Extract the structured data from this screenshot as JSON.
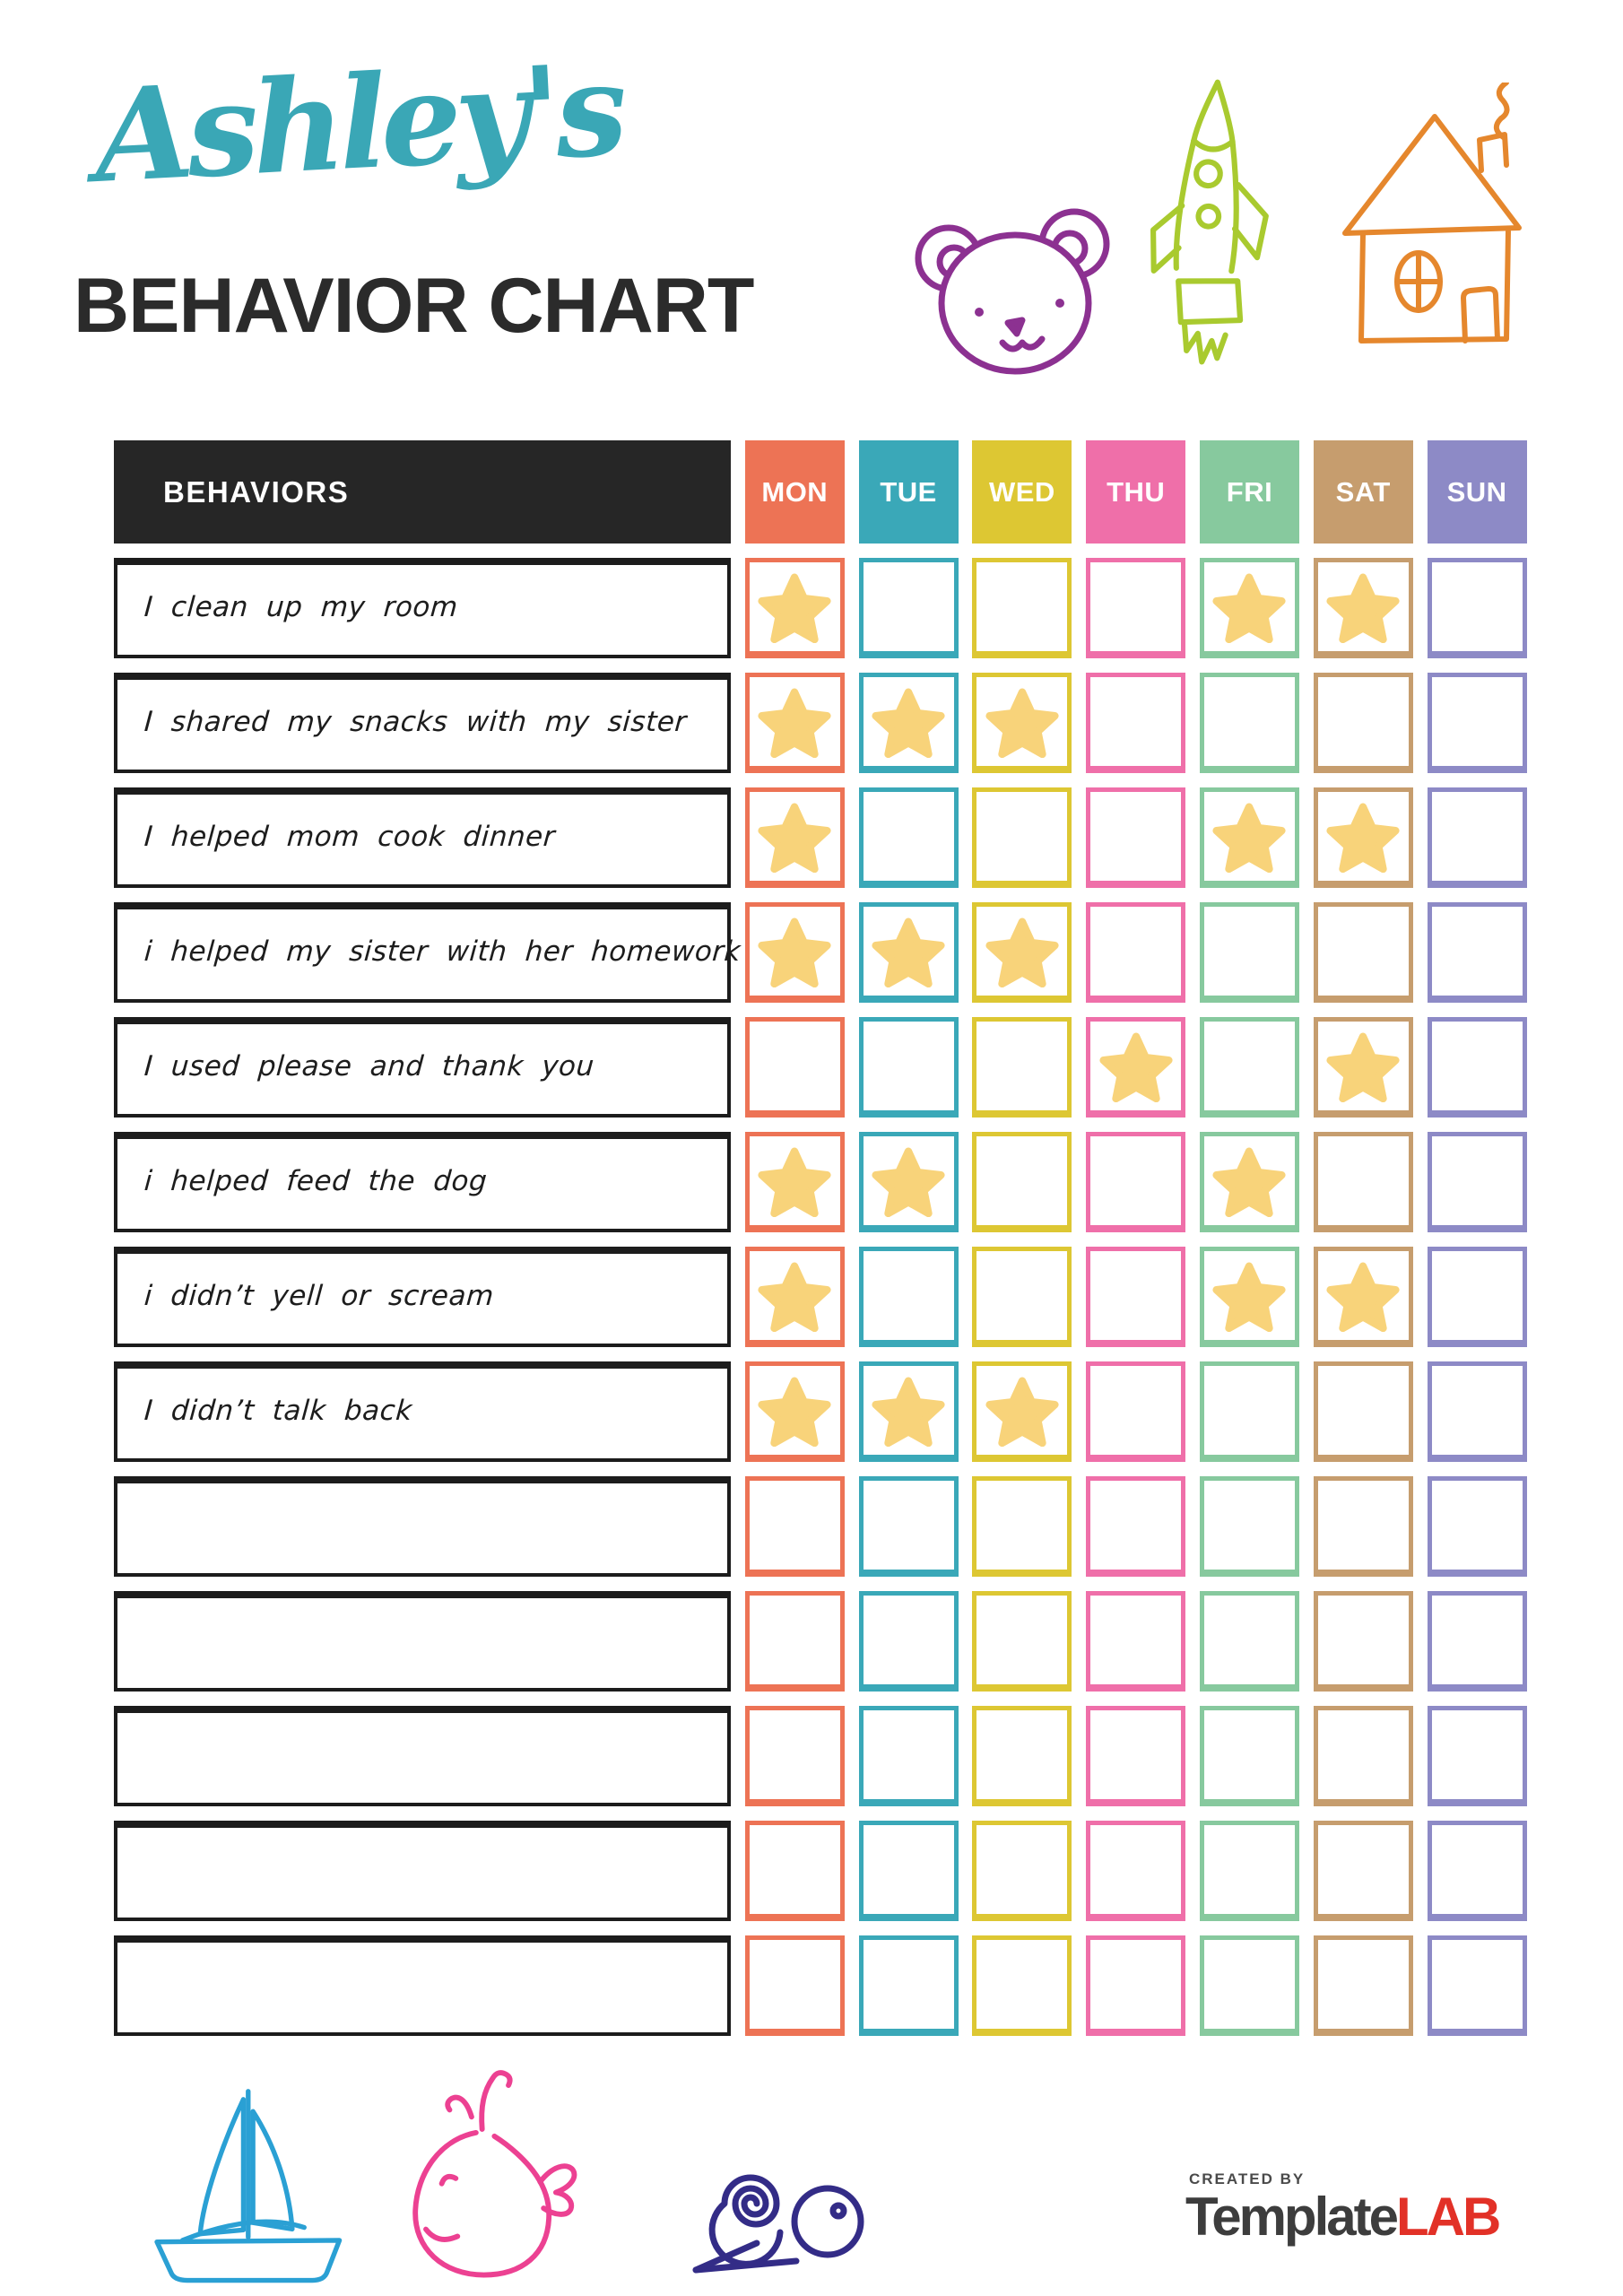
{
  "header": {
    "owner_name": "Ashley's",
    "owner_color": "#3aa7b6",
    "title": "BEHAVIOR CHART",
    "title_color": "#2b2b2b",
    "doodles": [
      {
        "name": "bear-icon",
        "color": "#8c3191"
      },
      {
        "name": "rocket-icon",
        "color": "#a9ca2f"
      },
      {
        "name": "house-icon",
        "color": "#e5872d"
      }
    ]
  },
  "table": {
    "behaviors_header": "BEHAVIORS",
    "behaviors_header_bg": "#262626",
    "star_color": "#f8d37a",
    "days": [
      {
        "label": "MON",
        "color": "#ed7355"
      },
      {
        "label": "TUE",
        "color": "#3aa8b8"
      },
      {
        "label": "WED",
        "color": "#ddc733"
      },
      {
        "label": "THU",
        "color": "#ef6fa9"
      },
      {
        "label": "FRI",
        "color": "#87c99e"
      },
      {
        "label": "SAT",
        "color": "#c69d6e"
      },
      {
        "label": "SUN",
        "color": "#8d8ac6"
      }
    ],
    "rows": [
      {
        "label": "I clean up my room",
        "stars": [
          "MON",
          "FRI",
          "SAT"
        ]
      },
      {
        "label": "I shared my snacks with my sister",
        "stars": [
          "MON",
          "TUE",
          "WED"
        ]
      },
      {
        "label": "I helped mom cook dinner",
        "stars": [
          "MON",
          "FRI",
          "SAT"
        ]
      },
      {
        "label": "i helped my sister with her homework",
        "stars": [
          "MON",
          "TUE",
          "WED"
        ]
      },
      {
        "label": "I used please and thank you",
        "stars": [
          "THU",
          "SAT"
        ]
      },
      {
        "label": "i helped feed the dog",
        "stars": [
          "MON",
          "TUE",
          "FRI"
        ]
      },
      {
        "label": "i didn’t yell or scream",
        "stars": [
          "MON",
          "FRI",
          "SAT"
        ]
      },
      {
        "label": "I didn’t talk back",
        "stars": [
          "MON",
          "TUE",
          "WED"
        ]
      },
      {
        "label": "",
        "stars": []
      },
      {
        "label": "",
        "stars": []
      },
      {
        "label": "",
        "stars": []
      },
      {
        "label": "",
        "stars": []
      },
      {
        "label": "",
        "stars": []
      }
    ]
  },
  "footer": {
    "doodles": [
      {
        "name": "sailboat-icon",
        "color": "#2aa0d4"
      },
      {
        "name": "whale-icon",
        "color": "#ec4192"
      },
      {
        "name": "snail-icon",
        "color": "#332c87"
      }
    ],
    "logo": {
      "created_by": "CREATED BY",
      "brand_dark": "Template",
      "brand_red": "LAB",
      "dark_color": "#3d3d3d",
      "red_color": "#e23127"
    }
  }
}
